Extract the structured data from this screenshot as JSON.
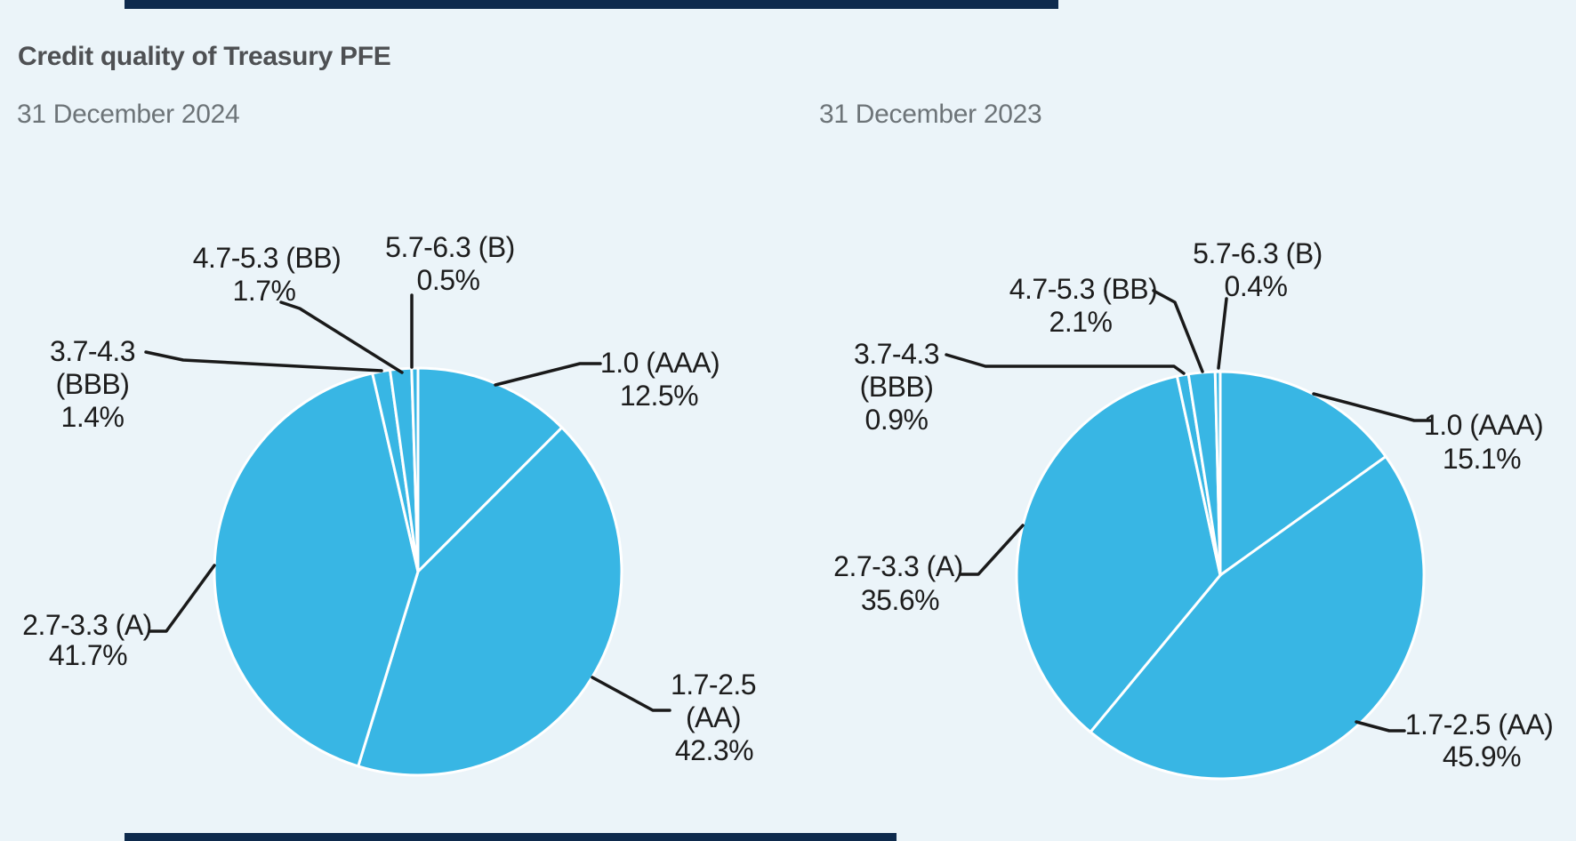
{
  "figure": {
    "title": "Credit quality of Treasury PFE"
  },
  "colors": {
    "background": "#ebf4f9",
    "accent_bar": "#0e2a4d",
    "pie_fill": "#38b6e4",
    "slice_gap": "#ffffff",
    "title_text": "#4e5053",
    "subtitle_text": "#6d7478",
    "label_text": "#1d1d1d",
    "callout_line": "#1a1a1a"
  },
  "chart_data": [
    {
      "type": "pie",
      "title": "31 December 2024",
      "categories": [
        "1.0 (AAA)",
        "1.7-2.5 (AA)",
        "2.7-3.3 (A)",
        "3.7-4.3 (BBB)",
        "4.7-5.3 (BB)",
        "5.7-6.3 (B)"
      ],
      "values": [
        12.5,
        42.3,
        41.7,
        1.4,
        1.7,
        0.5
      ],
      "value_labels": [
        "12.5%",
        "42.3%",
        "41.7%",
        "1.4%",
        "1.7%",
        "0.5%"
      ],
      "label_lines": [
        [
          "1.0 (AAA)"
        ],
        [
          "1.7-2.5",
          "(AA)"
        ],
        [
          "2.7-3.3 (A)"
        ],
        [
          "3.7-4.3",
          "(BBB)"
        ],
        [
          "4.7-5.3 (BB)"
        ],
        [
          "5.7-6.3 (B)"
        ]
      ],
      "start_angle_deg": 0,
      "direction": "clockwise",
      "slice_color": "#38b6e4",
      "legend": "none"
    },
    {
      "type": "pie",
      "title": "31 December 2023",
      "categories": [
        "1.0 (AAA)",
        "1.7-2.5 (AA)",
        "2.7-3.3 (A)",
        "3.7-4.3 (BBB)",
        "4.7-5.3 (BB)",
        "5.7-6.3 (B)"
      ],
      "values": [
        15.1,
        45.9,
        35.6,
        0.9,
        2.1,
        0.4
      ],
      "value_labels": [
        "15.1%",
        "45.9%",
        "35.6%",
        "0.9%",
        "2.1%",
        "0.4%"
      ],
      "label_lines": [
        [
          "1.0 (AAA)"
        ],
        [
          "1.7-2.5 (AA)"
        ],
        [
          "2.7-3.3 (A)"
        ],
        [
          "3.7-4.3",
          "(BBB)"
        ],
        [
          "4.7-5.3 (BB)"
        ],
        [
          "5.7-6.3 (B)"
        ]
      ],
      "start_angle_deg": 0,
      "direction": "clockwise",
      "slice_color": "#38b6e4",
      "legend": "none"
    }
  ]
}
